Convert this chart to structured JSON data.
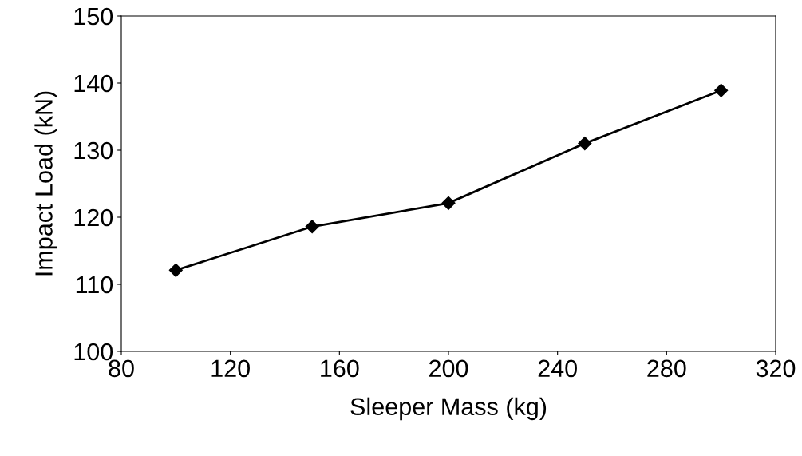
{
  "chart_data": {
    "type": "line",
    "xlabel": "Sleeper Mass (kg)",
    "ylabel": "Impact Load (kN)",
    "x": [
      100,
      150,
      200,
      250,
      300
    ],
    "series": [
      {
        "color": "#000000",
        "values": [
          112.1,
          118.6,
          122.1,
          131.0,
          138.9
        ]
      }
    ],
    "xlim": [
      80,
      320
    ],
    "xticks": [
      80,
      120,
      160,
      200,
      240,
      280,
      320
    ],
    "ylim": [
      100,
      150
    ],
    "yticks": [
      100,
      110,
      120,
      130,
      140,
      150
    ],
    "grid": false,
    "legend": false,
    "marker": "diamond",
    "line_style": "solid"
  }
}
